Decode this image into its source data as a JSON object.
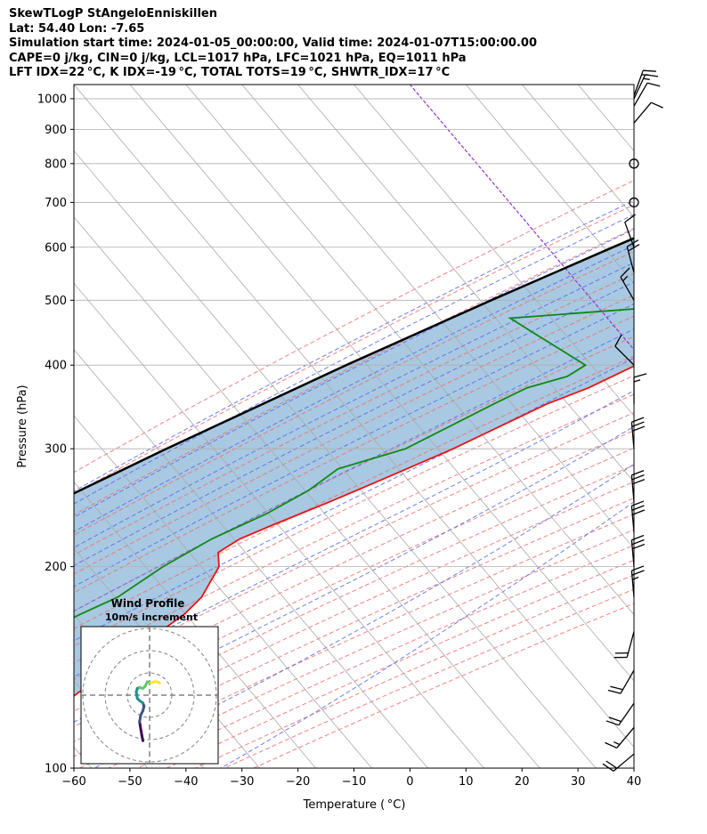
{
  "header": {
    "line1": "SkewTLogP StAngeloEnniskillen",
    "line2": "Lat: 54.40   Lon: -7.65",
    "line3": "Simulation start time: 2024-01-05_00:00:00, Valid time: 2024-01-07T15:00:00.00",
    "line4": "CAPE=0 j/kg, CIN=0 j/kg, LCL=1017 hPa, LFC=1021 hPa, EQ=1011 hPa",
    "line5": "LFT IDX=22 °C, K IDX=-19 °C, TOTAL TOTS=19 °C, SHWTR_IDX=17 °C"
  },
  "colors": {
    "temperature": "#ee1111",
    "dewpoint": "#118811",
    "parcel": "#000000",
    "cape_fill": "#a3c6df",
    "dry_adiabat": "#f26b6b",
    "moist_adiabat": "#5566ee",
    "mixing_ratio": "#a9a9a9",
    "isotherm_zero": "#9933cc",
    "grid": "#b0b0b0"
  },
  "chart_data": {
    "type": "skew-t",
    "xlabel": "Temperature ( °C)",
    "ylabel": "Pressure (hPa)",
    "xlim": [
      -60,
      40
    ],
    "ylim": [
      1050,
      100
    ],
    "xticks": [
      -60,
      -50,
      -40,
      -30,
      -20,
      -10,
      0,
      10,
      20,
      30,
      40
    ],
    "yticks": [
      100,
      200,
      300,
      400,
      500,
      600,
      700,
      800,
      900,
      1000
    ],
    "grid": true,
    "log_pressure": true,
    "temperature_profile": {
      "pressure": [
        1000,
        990,
        975,
        950,
        925,
        900,
        850,
        800,
        750,
        700,
        650,
        600,
        550,
        500,
        470,
        450,
        400,
        370,
        350,
        300,
        270,
        250,
        230,
        220,
        210,
        200,
        180,
        170,
        150,
        120,
        110,
        100
      ],
      "temperature": [
        -0.5,
        4.5,
        6.5,
        5.5,
        4.8,
        4.8,
        5.8,
        6.3,
        5.5,
        3.8,
        1.8,
        -0.2,
        -1.5,
        -5.5,
        -9.5,
        -12.5,
        -20.5,
        -25.5,
        -30.5,
        -40.5,
        -48.5,
        -54.5,
        -61.5,
        -65.0,
        -66.8,
        -64.5,
        -63.0,
        -63.5,
        -67.0,
        -72.5,
        -73.5,
        -75.0
      ]
    },
    "dewpoint_profile": {
      "pressure": [
        1000,
        990,
        975,
        950,
        925,
        900,
        850,
        800,
        780,
        750,
        700,
        650,
        600,
        550,
        500,
        470,
        450,
        400,
        385,
        370,
        350,
        300,
        280,
        260,
        240,
        220,
        200,
        180,
        170,
        150,
        120,
        100
      ],
      "temperature": [
        -0.5,
        1.0,
        1.5,
        -0.5,
        -3.0,
        -7.0,
        -19.0,
        -32.0,
        -39.5,
        -39.0,
        -35.0,
        -25.0,
        -12.0,
        -2.5,
        -10.0,
        -50.0,
        -44.5,
        -29.5,
        -31.0,
        -36.5,
        -40.0,
        -49.0,
        -58.0,
        -60.0,
        -64.0,
        -70.0,
        -74.5,
        -78.0,
        -82.0,
        -90.0,
        -103.0,
        -115.0
      ]
    },
    "parcel_profile": {
      "pressure": [
        1030,
        1000,
        950,
        900,
        850,
        800,
        700,
        600,
        500,
        400,
        300,
        250,
        200,
        150,
        100
      ],
      "temperature": [
        0.3,
        -2.0,
        -6.3,
        -10.7,
        -15.3,
        -20.1,
        -30.5,
        -42.4,
        -56.1,
        -72.2,
        -91.7,
        -103.3,
        -116.8,
        -133.2,
        -154.6
      ]
    },
    "wind_barbs": [
      {
        "pressure": 1011,
        "speed_kt": 15,
        "direction_deg": 20
      },
      {
        "pressure": 1000,
        "speed_kt": 15,
        "direction_deg": 25
      },
      {
        "pressure": 975,
        "speed_kt": 10,
        "direction_deg": 30
      },
      {
        "pressure": 920,
        "speed_kt": 10,
        "direction_deg": 40
      },
      {
        "pressure": 800,
        "speed_kt": 0,
        "direction_deg": 0
      },
      {
        "pressure": 700,
        "speed_kt": 0,
        "direction_deg": 0
      },
      {
        "pressure": 600,
        "speed_kt": 10,
        "direction_deg": 340
      },
      {
        "pressure": 550,
        "speed_kt": 20,
        "direction_deg": 345
      },
      {
        "pressure": 500,
        "speed_kt": 15,
        "direction_deg": 330
      },
      {
        "pressure": 400,
        "speed_kt": 10,
        "direction_deg": 315
      },
      {
        "pressure": 350,
        "speed_kt": 15,
        "direction_deg": 0
      },
      {
        "pressure": 300,
        "speed_kt": 30,
        "direction_deg": 355
      },
      {
        "pressure": 250,
        "speed_kt": 30,
        "direction_deg": 355
      },
      {
        "pressure": 225,
        "speed_kt": 30,
        "direction_deg": 355
      },
      {
        "pressure": 200,
        "speed_kt": 30,
        "direction_deg": 355
      },
      {
        "pressure": 180,
        "speed_kt": 25,
        "direction_deg": 355
      },
      {
        "pressure": 160,
        "speed_kt": 20,
        "direction_deg": 195
      },
      {
        "pressure": 140,
        "speed_kt": 20,
        "direction_deg": 210
      },
      {
        "pressure": 125,
        "speed_kt": 20,
        "direction_deg": 215
      },
      {
        "pressure": 115,
        "speed_kt": 15,
        "direction_deg": 220
      },
      {
        "pressure": 105,
        "speed_kt": 20,
        "direction_deg": 230
      }
    ],
    "hodograph": {
      "title": "Wind Profile",
      "subtitle": "10m/s increment",
      "ring_step_ms": 10,
      "u": [
        -3.0,
        -3.5,
        -4.0,
        -4.5,
        -4.0,
        -3.0,
        -2.5,
        -3.0,
        -4.5,
        -5.5,
        -6.0,
        -5.5,
        -4.5,
        -3.0,
        -2.0,
        -1.0,
        0.5,
        2.0,
        3.5,
        4.5
      ],
      "v": [
        -20.5,
        -18.0,
        -15.0,
        -12.0,
        -9.0,
        -7.0,
        -5.0,
        -3.5,
        -2.5,
        -1.5,
        1.5,
        3.0,
        3.5,
        3.0,
        4.0,
        6.0,
        5.5,
        6.0,
        6.0,
        5.5
      ]
    }
  }
}
